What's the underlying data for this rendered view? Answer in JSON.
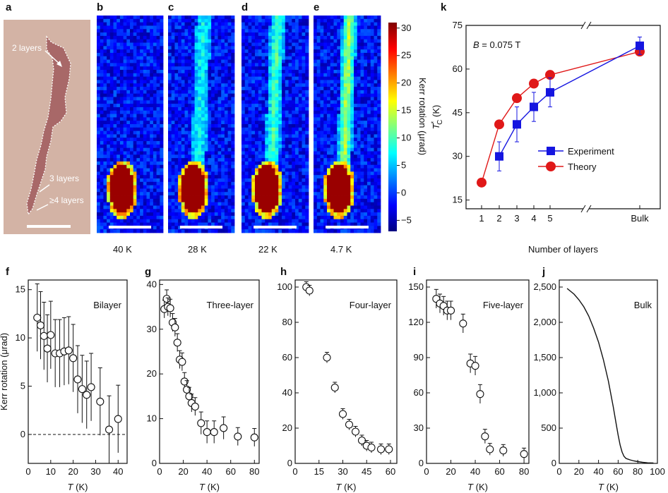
{
  "panel_letters": [
    "a",
    "b",
    "c",
    "d",
    "e",
    "f",
    "g",
    "h",
    "i",
    "j",
    "k"
  ],
  "micrograph": {
    "annotations": [
      "2 layers",
      "3 layers",
      "≥4 layers"
    ],
    "colors": {
      "flake": "#a86868",
      "substrate": "#d3b3a5"
    }
  },
  "kerr_maps": {
    "temperatures": [
      "40 K",
      "28 K",
      "22 K",
      "4.7 K"
    ],
    "colorbar": {
      "ticks": [
        "30",
        "25",
        "20",
        "15",
        "10",
        "5",
        "0",
        "−5"
      ],
      "label": "Kerr rotation (μrad)",
      "range": [
        -7,
        31
      ]
    }
  },
  "chart_data": [
    {
      "id": "f",
      "type": "scatter",
      "annotation": "Bilayer",
      "ylabel": "Kerr rotation (μrad)",
      "xlabel": "T (K)",
      "xlim": [
        0,
        44
      ],
      "ylim": [
        -3,
        16
      ],
      "xticks": [
        "0",
        "10",
        "20",
        "30",
        "40"
      ],
      "yticks": [
        "0",
        "5",
        "10",
        "15"
      ],
      "reference_line": {
        "y": 0,
        "style": "dashed"
      },
      "points": [
        {
          "x": 4,
          "y": 12.1,
          "err": 3.5
        },
        {
          "x": 5.5,
          "y": 11.3,
          "err": 3.5
        },
        {
          "x": 7,
          "y": 10.2,
          "err": 3.5
        },
        {
          "x": 8.5,
          "y": 8.9,
          "err": 3.5
        },
        {
          "x": 10,
          "y": 10.3,
          "err": 3.5
        },
        {
          "x": 12,
          "y": 8.4,
          "err": 3.5
        },
        {
          "x": 14,
          "y": 8.4,
          "err": 3.5
        },
        {
          "x": 16,
          "y": 8.6,
          "err": 3.5
        },
        {
          "x": 18,
          "y": 8.7,
          "err": 3.5
        },
        {
          "x": 20,
          "y": 7.9,
          "err": 3.5
        },
        {
          "x": 22,
          "y": 5.7,
          "err": 3.5
        },
        {
          "x": 24,
          "y": 4.7,
          "err": 3.5
        },
        {
          "x": 26,
          "y": 4.1,
          "err": 3.5
        },
        {
          "x": 28,
          "y": 4.9,
          "err": 3.5
        },
        {
          "x": 32,
          "y": 3.4,
          "err": 3.5
        },
        {
          "x": 36,
          "y": 0.5,
          "err": 3.5
        },
        {
          "x": 40,
          "y": 1.6,
          "err": 3.5
        }
      ]
    },
    {
      "id": "g",
      "type": "scatter",
      "annotation": "Three-layer",
      "ylabel": "",
      "xlabel": "T (K)",
      "xlim": [
        0,
        84
      ],
      "ylim": [
        0,
        41
      ],
      "xticks": [
        "0",
        "20",
        "40",
        "60",
        "80"
      ],
      "yticks": [
        "0",
        "10",
        "20",
        "30",
        "40"
      ],
      "points": [
        {
          "x": 4,
          "y": 34.5,
          "err": 2
        },
        {
          "x": 6,
          "y": 36.8,
          "err": 2
        },
        {
          "x": 7,
          "y": 35,
          "err": 2
        },
        {
          "x": 9,
          "y": 34.7,
          "err": 2
        },
        {
          "x": 11,
          "y": 31.5,
          "err": 2
        },
        {
          "x": 13,
          "y": 30.4,
          "err": 2
        },
        {
          "x": 15,
          "y": 27,
          "err": 2
        },
        {
          "x": 17,
          "y": 23.2,
          "err": 2
        },
        {
          "x": 19,
          "y": 22.7,
          "err": 2
        },
        {
          "x": 21,
          "y": 18.3,
          "err": 2
        },
        {
          "x": 23,
          "y": 16.5,
          "err": 2
        },
        {
          "x": 25,
          "y": 15,
          "err": 2
        },
        {
          "x": 27,
          "y": 13.5,
          "err": 2
        },
        {
          "x": 30,
          "y": 12.7,
          "err": 2
        },
        {
          "x": 35,
          "y": 9,
          "err": 2.5
        },
        {
          "x": 40,
          "y": 7,
          "err": 2.5
        },
        {
          "x": 46,
          "y": 7,
          "err": 2.5
        },
        {
          "x": 54,
          "y": 7.9,
          "err": 2.5
        },
        {
          "x": 66,
          "y": 6,
          "err": 2
        },
        {
          "x": 80,
          "y": 5.8,
          "err": 2
        }
      ]
    },
    {
      "id": "h",
      "type": "scatter",
      "annotation": "Four-layer",
      "ylabel": "",
      "xlabel": "T (K)",
      "xlim": [
        0,
        64
      ],
      "ylim": [
        0,
        104
      ],
      "xticks": [
        "0",
        "15",
        "30",
        "45",
        "60"
      ],
      "yticks": [
        "0",
        "20",
        "40",
        "60",
        "80",
        "100"
      ],
      "points": [
        {
          "x": 7,
          "y": 100,
          "err": 3
        },
        {
          "x": 9,
          "y": 98,
          "err": 3
        },
        {
          "x": 20,
          "y": 60,
          "err": 3
        },
        {
          "x": 25,
          "y": 43,
          "err": 3
        },
        {
          "x": 30,
          "y": 28,
          "err": 3
        },
        {
          "x": 34,
          "y": 22,
          "err": 3
        },
        {
          "x": 38,
          "y": 18,
          "err": 3
        },
        {
          "x": 42,
          "y": 13,
          "err": 3
        },
        {
          "x": 45,
          "y": 10,
          "err": 3
        },
        {
          "x": 48,
          "y": 9,
          "err": 3
        },
        {
          "x": 54,
          "y": 8,
          "err": 3
        },
        {
          "x": 59,
          "y": 8,
          "err": 3
        }
      ]
    },
    {
      "id": "i",
      "type": "scatter",
      "annotation": "Five-layer",
      "ylabel": "",
      "xlabel": "T (K)",
      "xlim": [
        0,
        84
      ],
      "ylim": [
        0,
        156
      ],
      "xticks": [
        "0",
        "20",
        "40",
        "60",
        "80"
      ],
      "yticks": [
        "0",
        "30",
        "60",
        "90",
        "120",
        "150"
      ],
      "points": [
        {
          "x": 8,
          "y": 140,
          "err": 8
        },
        {
          "x": 11,
          "y": 136,
          "err": 8
        },
        {
          "x": 14,
          "y": 134,
          "err": 8
        },
        {
          "x": 17,
          "y": 130,
          "err": 8
        },
        {
          "x": 20,
          "y": 130,
          "err": 8
        },
        {
          "x": 30,
          "y": 119,
          "err": 8
        },
        {
          "x": 36,
          "y": 85,
          "err": 8
        },
        {
          "x": 40,
          "y": 83,
          "err": 8
        },
        {
          "x": 44,
          "y": 59,
          "err": 8
        },
        {
          "x": 48,
          "y": 23,
          "err": 6
        },
        {
          "x": 52,
          "y": 12,
          "err": 5
        },
        {
          "x": 63,
          "y": 11,
          "err": 5
        },
        {
          "x": 80,
          "y": 8,
          "err": 5
        }
      ]
    },
    {
      "id": "j",
      "type": "line",
      "annotation": "Bulk",
      "ylabel": "",
      "xlabel": "T (K)",
      "xlim": [
        0,
        100
      ],
      "ylim": [
        0,
        2600
      ],
      "xticks": [
        "0",
        "20",
        "40",
        "60",
        "80",
        "100"
      ],
      "yticks": [
        "0",
        "500",
        "1,000",
        "1,500",
        "2,000",
        "2,500"
      ],
      "x": [
        8,
        15,
        20,
        25,
        30,
        35,
        40,
        45,
        50,
        55,
        58,
        60,
        62,
        64,
        66,
        68,
        72,
        76,
        80,
        85,
        90,
        96
      ],
      "y": [
        2480,
        2400,
        2320,
        2220,
        2090,
        1920,
        1720,
        1470,
        1170,
        800,
        560,
        400,
        260,
        160,
        100,
        70,
        50,
        35,
        25,
        15,
        8,
        5
      ]
    },
    {
      "id": "k",
      "type": "line",
      "annotation": "B = 0.075 T",
      "ylabel": "T*C (K)",
      "xlabel": "Number of layers",
      "ylim": [
        12,
        75
      ],
      "categories": [
        "1",
        "2",
        "3",
        "4",
        "5",
        "Bulk"
      ],
      "yticks": [
        "15",
        "30",
        "45",
        "60",
        "75"
      ],
      "legend": "center-right",
      "series": [
        {
          "name": "Experiment",
          "color": "#1515e0",
          "marker": "square",
          "points": [
            {
              "x": "2",
              "y": 30,
              "err": 5
            },
            {
              "x": "3",
              "y": 41,
              "err": 6
            },
            {
              "x": "4",
              "y": 47,
              "err": 5
            },
            {
              "x": "5",
              "y": 52,
              "err": 5
            },
            {
              "x": "Bulk",
              "y": 68,
              "err": 3
            }
          ]
        },
        {
          "name": "Theory",
          "color": "#e01818",
          "marker": "circle",
          "points": [
            {
              "x": "1",
              "y": 21
            },
            {
              "x": "2",
              "y": 41
            },
            {
              "x": "3",
              "y": 50
            },
            {
              "x": "4",
              "y": 55
            },
            {
              "x": "5",
              "y": 58
            },
            {
              "x": "Bulk",
              "y": 66
            }
          ]
        }
      ]
    }
  ]
}
